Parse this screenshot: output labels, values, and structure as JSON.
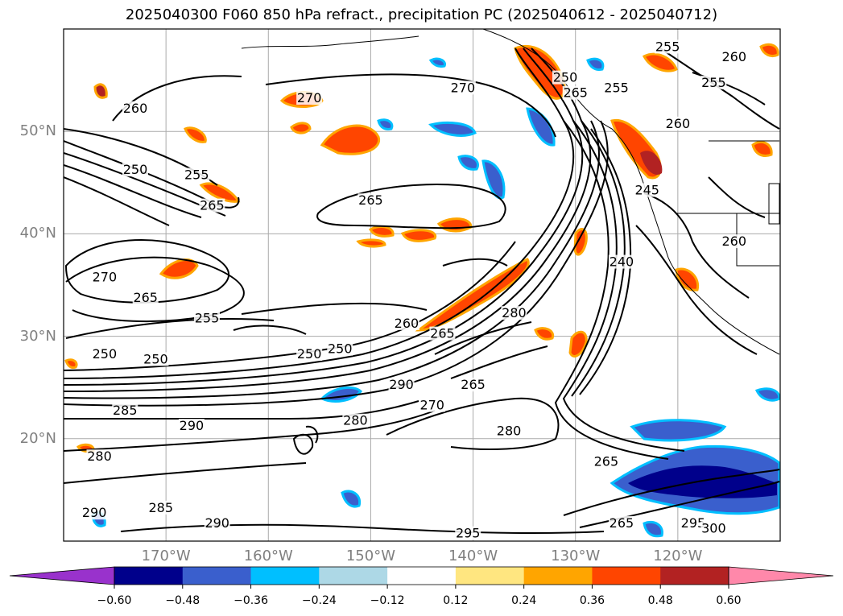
{
  "chart_data": {
    "type": "contour-map",
    "title": "2025040300 F060 850 hPa refract., precipitation PC (2025040612 - 2025040712)",
    "lat_ticks": [
      "50°N",
      "40°N",
      "30°N",
      "20°N"
    ],
    "lat_values": [
      50,
      40,
      30,
      20
    ],
    "lon_ticks": [
      "170°W",
      "160°W",
      "150°W",
      "140°W",
      "130°W",
      "120°W"
    ],
    "lon_values": [
      -170,
      -160,
      -150,
      -140,
      -130,
      -120
    ],
    "extent": {
      "lon": [
        -180,
        -110
      ],
      "lat": [
        10,
        60
      ]
    },
    "grid": true,
    "colorbar": {
      "ticks": [
        "−0.60",
        "−0.48",
        "−0.36",
        "−0.24",
        "−0.12",
        "0.12",
        "0.24",
        "0.36",
        "0.48",
        "0.60"
      ],
      "bins": [
        {
          "color": "#9932cc"
        },
        {
          "color": "#00008b"
        },
        {
          "color": "#3a5fcd"
        },
        {
          "color": "#00bfff"
        },
        {
          "color": "#add8e6"
        },
        {
          "color": "#ffffff"
        },
        {
          "color": "#ffe680"
        },
        {
          "color": "#ffa500"
        },
        {
          "color": "#ff4500"
        },
        {
          "color": "#b22222"
        },
        {
          "color": "#ff88aa"
        }
      ]
    },
    "contour_labels": [
      {
        "text": "270",
        "lon": -176,
        "lat": 35.5
      },
      {
        "text": "265",
        "lon": -172,
        "lat": 33.5
      },
      {
        "text": "255",
        "lon": -167,
        "lat": 45.5
      },
      {
        "text": "250",
        "lon": -173,
        "lat": 46
      },
      {
        "text": "260",
        "lon": -173,
        "lat": 52
      },
      {
        "text": "265",
        "lon": -165.5,
        "lat": 42.5
      },
      {
        "text": "250",
        "lon": -176,
        "lat": 28
      },
      {
        "text": "250",
        "lon": -171,
        "lat": 27.5
      },
      {
        "text": "255",
        "lon": -166,
        "lat": 31.5
      },
      {
        "text": "250",
        "lon": -156,
        "lat": 28
      },
      {
        "text": "250",
        "lon": -153,
        "lat": 28.5
      },
      {
        "text": "260",
        "lon": -146.5,
        "lat": 31
      },
      {
        "text": "265",
        "lon": -150,
        "lat": 43
      },
      {
        "text": "270",
        "lon": -141,
        "lat": 54
      },
      {
        "text": "270",
        "lon": -156,
        "lat": 53
      },
      {
        "text": "265",
        "lon": -143,
        "lat": 30
      },
      {
        "text": "280",
        "lon": -136,
        "lat": 32
      },
      {
        "text": "290",
        "lon": -147,
        "lat": 25
      },
      {
        "text": "265",
        "lon": -140,
        "lat": 25
      },
      {
        "text": "270",
        "lon": -144,
        "lat": 23
      },
      {
        "text": "280",
        "lon": -151.5,
        "lat": 21.5
      },
      {
        "text": "280",
        "lon": -136.5,
        "lat": 20.5
      },
      {
        "text": "285",
        "lon": -174,
        "lat": 22.5
      },
      {
        "text": "290",
        "lon": -167.5,
        "lat": 21
      },
      {
        "text": "280",
        "lon": -176.5,
        "lat": 18
      },
      {
        "text": "285",
        "lon": -170.5,
        "lat": 13
      },
      {
        "text": "290",
        "lon": -177,
        "lat": 12.5
      },
      {
        "text": "290",
        "lon": -165,
        "lat": 11.5
      },
      {
        "text": "265",
        "lon": -127,
        "lat": 17.5
      },
      {
        "text": "265",
        "lon": -125.5,
        "lat": 11.5
      },
      {
        "text": "295",
        "lon": -118.5,
        "lat": 11.5
      },
      {
        "text": "300",
        "lon": -116.5,
        "lat": 11
      },
      {
        "text": "295",
        "lon": -140.5,
        "lat": 10.5
      },
      {
        "text": "240",
        "lon": -125.5,
        "lat": 37
      },
      {
        "text": "245",
        "lon": -123,
        "lat": 44
      },
      {
        "text": "265",
        "lon": -130,
        "lat": 53.5
      },
      {
        "text": "255",
        "lon": -126,
        "lat": 54
      },
      {
        "text": "260",
        "lon": -114.5,
        "lat": 57
      },
      {
        "text": "255",
        "lon": -116.5,
        "lat": 54.5
      },
      {
        "text": "260",
        "lon": -120,
        "lat": 50.5
      },
      {
        "text": "260",
        "lon": -114.5,
        "lat": 39
      },
      {
        "text": "255",
        "lon": -121,
        "lat": 58
      },
      {
        "text": "250",
        "lon": -131,
        "lat": 55
      }
    ]
  }
}
